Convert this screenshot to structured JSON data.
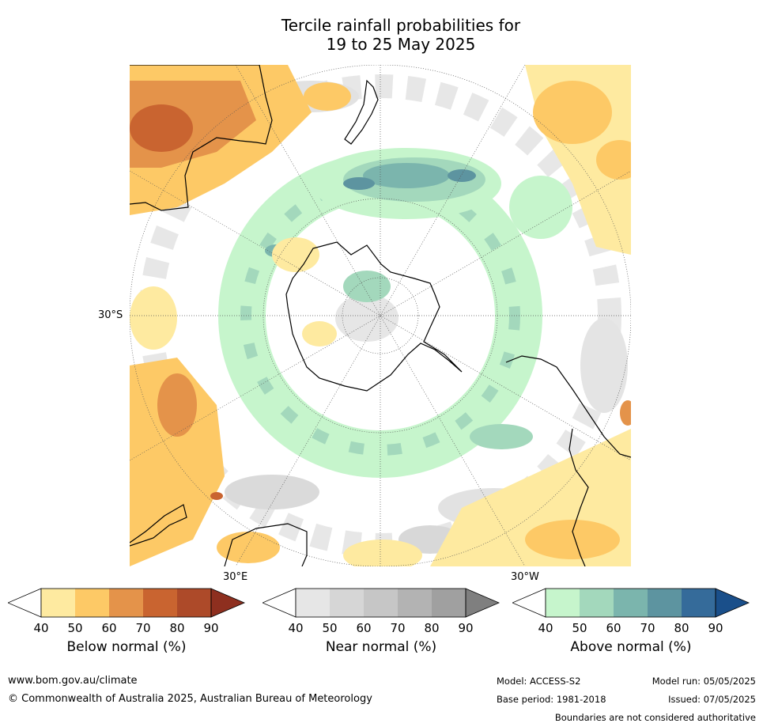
{
  "title": {
    "line1": "Tercile rainfall probabilities for",
    "line2": "19 to 25 May 2025"
  },
  "map": {
    "lat_label": "30°S",
    "lon_labels": {
      "east": "30°E",
      "west": "30°W"
    },
    "land_outline_color": "#000000",
    "graticule_color": "#555555"
  },
  "colorbars": [
    {
      "title": "Below normal (%)",
      "ticks": [
        "40",
        "50",
        "60",
        "70",
        "80",
        "90"
      ],
      "colors": [
        "#ffffff",
        "#feeaa0",
        "#fdc966",
        "#e4934a",
        "#c96430",
        "#ad4a29",
        "#8e2f1f"
      ]
    },
    {
      "title": "Near normal (%)",
      "ticks": [
        "40",
        "50",
        "60",
        "70",
        "80",
        "90"
      ],
      "colors": [
        "#ffffff",
        "#e6e6e6",
        "#d6d6d6",
        "#c6c6c6",
        "#b3b3b3",
        "#a0a0a0",
        "#7f7f7f"
      ]
    },
    {
      "title": "Above normal (%)",
      "ticks": [
        "40",
        "50",
        "60",
        "70",
        "80",
        "90"
      ],
      "colors": [
        "#ffffff",
        "#c6f5cc",
        "#a3d8bc",
        "#7bb5ad",
        "#5d94a0",
        "#356b9a",
        "#1a4f8a"
      ]
    }
  ],
  "footer": {
    "website": "www.bom.gov.au/climate",
    "copyright": "© Commonwealth of Australia 2025, Australian Bureau of Meteorology",
    "model": "Model: ACCESS-S2",
    "model_run": "Model run: 05/05/2025",
    "base_period": "Base period: 1981-2018",
    "issued": "Issued: 07/05/2025",
    "disclaimer": "Boundaries are not considered authoritative"
  }
}
